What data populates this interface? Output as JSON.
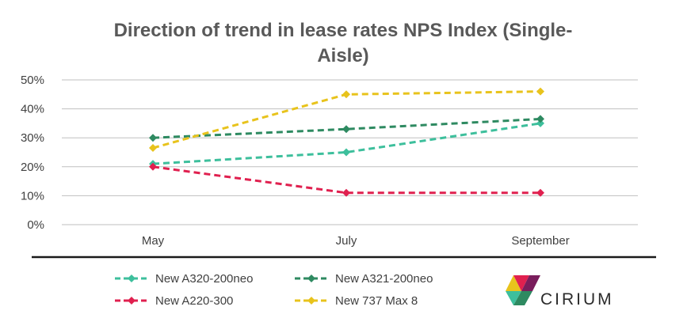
{
  "chart_data": {
    "type": "line",
    "title_lines": [
      "Direction of trend in lease rates NPS Index (Single-",
      "Aisle)"
    ],
    "categories": [
      "May",
      "July",
      "September"
    ],
    "y_ticks": [
      "0%",
      "10%",
      "20%",
      "30%",
      "40%",
      "50%"
    ],
    "ylim": [
      0,
      50
    ],
    "grid": true,
    "legend_position": "bottom",
    "series": [
      {
        "name": "New A320-200neo",
        "values": [
          21,
          25,
          35
        ],
        "color": "#3dbf9c"
      },
      {
        "name": "New A321-200neo",
        "values": [
          30,
          33,
          36.5
        ],
        "color": "#2e8a61"
      },
      {
        "name": "New A220-300",
        "values": [
          20,
          11,
          11
        ],
        "color": "#e0204f"
      },
      {
        "name": "New 737 Max 8",
        "values": [
          26.5,
          45,
          46
        ],
        "color": "#e8c31c"
      }
    ]
  },
  "brand": {
    "name": "CIRIUM",
    "logo_icon": "cirium-logo-icon"
  }
}
